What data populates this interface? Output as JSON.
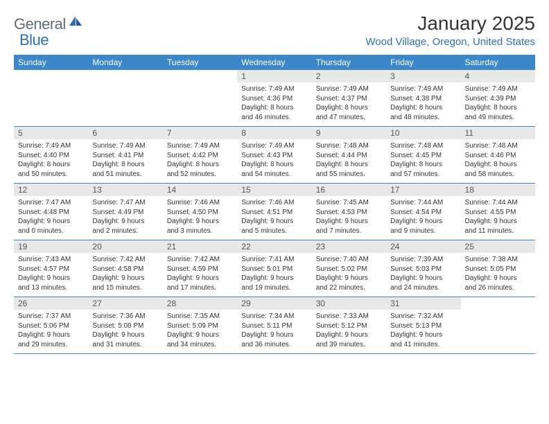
{
  "logo": {
    "text1": "General",
    "text2": "Blue"
  },
  "title": "January 2025",
  "location": "Wood Village, Oregon, United States",
  "colors": {
    "header_bg": "#3b87c8",
    "header_text": "#ffffff",
    "daynum_bg": "#e8e8e8",
    "row_border": "#3b87c8",
    "location_color": "#2a6fb5",
    "logo_gray": "#5f6b75",
    "logo_blue": "#2a6fb5"
  },
  "typography": {
    "title_fontsize": 28,
    "location_fontsize": 15,
    "dayhead_fontsize": 12,
    "daynum_fontsize": 12,
    "body_fontsize": 10
  },
  "day_headers": [
    "Sunday",
    "Monday",
    "Tuesday",
    "Wednesday",
    "Thursday",
    "Friday",
    "Saturday"
  ],
  "weeks": [
    [
      {
        "n": "",
        "lines": []
      },
      {
        "n": "",
        "lines": []
      },
      {
        "n": "",
        "lines": []
      },
      {
        "n": "1",
        "lines": [
          "Sunrise: 7:49 AM",
          "Sunset: 4:36 PM",
          "Daylight: 8 hours",
          "and 46 minutes."
        ]
      },
      {
        "n": "2",
        "lines": [
          "Sunrise: 7:49 AM",
          "Sunset: 4:37 PM",
          "Daylight: 8 hours",
          "and 47 minutes."
        ]
      },
      {
        "n": "3",
        "lines": [
          "Sunrise: 7:49 AM",
          "Sunset: 4:38 PM",
          "Daylight: 8 hours",
          "and 48 minutes."
        ]
      },
      {
        "n": "4",
        "lines": [
          "Sunrise: 7:49 AM",
          "Sunset: 4:39 PM",
          "Daylight: 8 hours",
          "and 49 minutes."
        ]
      }
    ],
    [
      {
        "n": "5",
        "lines": [
          "Sunrise: 7:49 AM",
          "Sunset: 4:40 PM",
          "Daylight: 8 hours",
          "and 50 minutes."
        ]
      },
      {
        "n": "6",
        "lines": [
          "Sunrise: 7:49 AM",
          "Sunset: 4:41 PM",
          "Daylight: 8 hours",
          "and 51 minutes."
        ]
      },
      {
        "n": "7",
        "lines": [
          "Sunrise: 7:49 AM",
          "Sunset: 4:42 PM",
          "Daylight: 8 hours",
          "and 52 minutes."
        ]
      },
      {
        "n": "8",
        "lines": [
          "Sunrise: 7:49 AM",
          "Sunset: 4:43 PM",
          "Daylight: 8 hours",
          "and 54 minutes."
        ]
      },
      {
        "n": "9",
        "lines": [
          "Sunrise: 7:48 AM",
          "Sunset: 4:44 PM",
          "Daylight: 8 hours",
          "and 55 minutes."
        ]
      },
      {
        "n": "10",
        "lines": [
          "Sunrise: 7:48 AM",
          "Sunset: 4:45 PM",
          "Daylight: 8 hours",
          "and 57 minutes."
        ]
      },
      {
        "n": "11",
        "lines": [
          "Sunrise: 7:48 AM",
          "Sunset: 4:46 PM",
          "Daylight: 8 hours",
          "and 58 minutes."
        ]
      }
    ],
    [
      {
        "n": "12",
        "lines": [
          "Sunrise: 7:47 AM",
          "Sunset: 4:48 PM",
          "Daylight: 9 hours",
          "and 0 minutes."
        ]
      },
      {
        "n": "13",
        "lines": [
          "Sunrise: 7:47 AM",
          "Sunset: 4:49 PM",
          "Daylight: 9 hours",
          "and 2 minutes."
        ]
      },
      {
        "n": "14",
        "lines": [
          "Sunrise: 7:46 AM",
          "Sunset: 4:50 PM",
          "Daylight: 9 hours",
          "and 3 minutes."
        ]
      },
      {
        "n": "15",
        "lines": [
          "Sunrise: 7:46 AM",
          "Sunset: 4:51 PM",
          "Daylight: 9 hours",
          "and 5 minutes."
        ]
      },
      {
        "n": "16",
        "lines": [
          "Sunrise: 7:45 AM",
          "Sunset: 4:53 PM",
          "Daylight: 9 hours",
          "and 7 minutes."
        ]
      },
      {
        "n": "17",
        "lines": [
          "Sunrise: 7:44 AM",
          "Sunset: 4:54 PM",
          "Daylight: 9 hours",
          "and 9 minutes."
        ]
      },
      {
        "n": "18",
        "lines": [
          "Sunrise: 7:44 AM",
          "Sunset: 4:55 PM",
          "Daylight: 9 hours",
          "and 11 minutes."
        ]
      }
    ],
    [
      {
        "n": "19",
        "lines": [
          "Sunrise: 7:43 AM",
          "Sunset: 4:57 PM",
          "Daylight: 9 hours",
          "and 13 minutes."
        ]
      },
      {
        "n": "20",
        "lines": [
          "Sunrise: 7:42 AM",
          "Sunset: 4:58 PM",
          "Daylight: 9 hours",
          "and 15 minutes."
        ]
      },
      {
        "n": "21",
        "lines": [
          "Sunrise: 7:42 AM",
          "Sunset: 4:59 PM",
          "Daylight: 9 hours",
          "and 17 minutes."
        ]
      },
      {
        "n": "22",
        "lines": [
          "Sunrise: 7:41 AM",
          "Sunset: 5:01 PM",
          "Daylight: 9 hours",
          "and 19 minutes."
        ]
      },
      {
        "n": "23",
        "lines": [
          "Sunrise: 7:40 AM",
          "Sunset: 5:02 PM",
          "Daylight: 9 hours",
          "and 22 minutes."
        ]
      },
      {
        "n": "24",
        "lines": [
          "Sunrise: 7:39 AM",
          "Sunset: 5:03 PM",
          "Daylight: 9 hours",
          "and 24 minutes."
        ]
      },
      {
        "n": "25",
        "lines": [
          "Sunrise: 7:38 AM",
          "Sunset: 5:05 PM",
          "Daylight: 9 hours",
          "and 26 minutes."
        ]
      }
    ],
    [
      {
        "n": "26",
        "lines": [
          "Sunrise: 7:37 AM",
          "Sunset: 5:06 PM",
          "Daylight: 9 hours",
          "and 29 minutes."
        ]
      },
      {
        "n": "27",
        "lines": [
          "Sunrise: 7:36 AM",
          "Sunset: 5:08 PM",
          "Daylight: 9 hours",
          "and 31 minutes."
        ]
      },
      {
        "n": "28",
        "lines": [
          "Sunrise: 7:35 AM",
          "Sunset: 5:09 PM",
          "Daylight: 9 hours",
          "and 34 minutes."
        ]
      },
      {
        "n": "29",
        "lines": [
          "Sunrise: 7:34 AM",
          "Sunset: 5:11 PM",
          "Daylight: 9 hours",
          "and 36 minutes."
        ]
      },
      {
        "n": "30",
        "lines": [
          "Sunrise: 7:33 AM",
          "Sunset: 5:12 PM",
          "Daylight: 9 hours",
          "and 39 minutes."
        ]
      },
      {
        "n": "31",
        "lines": [
          "Sunrise: 7:32 AM",
          "Sunset: 5:13 PM",
          "Daylight: 9 hours",
          "and 41 minutes."
        ]
      },
      {
        "n": "",
        "lines": []
      }
    ]
  ]
}
